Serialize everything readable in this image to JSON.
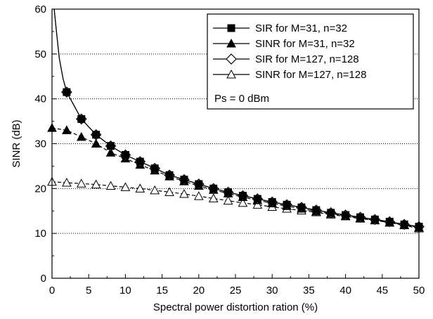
{
  "chart_data": {
    "type": "line",
    "xlabel": "Spectral power distortion ration (%)",
    "ylabel": "SINR (dB)",
    "xlim": [
      0,
      50
    ],
    "ylim": [
      0,
      60
    ],
    "x_ticks": [
      0,
      5,
      10,
      15,
      20,
      25,
      30,
      35,
      40,
      45,
      50
    ],
    "y_ticks": [
      0,
      10,
      20,
      30,
      40,
      50,
      60
    ],
    "grid": "horizontal dotted",
    "legend_position": "top-right",
    "annotation": "Ps = 0 dBm",
    "x": [
      2,
      4,
      6,
      8,
      10,
      12,
      14,
      16,
      18,
      20,
      22,
      24,
      26,
      28,
      30,
      32,
      34,
      36,
      38,
      40,
      42,
      44,
      46,
      48,
      50
    ],
    "series": [
      {
        "name": "SIR for M=31, n=32",
        "marker": "square-filled",
        "color": "#000000",
        "dashed": false,
        "curve_start": [
          0.3,
          60
        ],
        "values": [
          41.5,
          35.5,
          32.0,
          29.5,
          27.5,
          26.0,
          24.5,
          23.0,
          22.0,
          21.0,
          20.0,
          19.2,
          18.4,
          17.7,
          17.0,
          16.4,
          15.8,
          15.2,
          14.6,
          14.1,
          13.6,
          13.1,
          12.6,
          12.0,
          11.5
        ]
      },
      {
        "name": "SINR for M=31, n=32",
        "marker": "triangle-filled",
        "color": "#000000",
        "dashed": true,
        "curve_start": [
          0,
          33.5
        ],
        "values": [
          33.0,
          31.5,
          30.0,
          28.0,
          26.7,
          25.3,
          24.0,
          22.7,
          21.6,
          20.6,
          19.7,
          18.9,
          18.1,
          17.4,
          16.7,
          16.1,
          15.5,
          14.9,
          14.4,
          13.9,
          13.4,
          12.9,
          12.4,
          11.9,
          11.3
        ]
      },
      {
        "name": "SIR for M=127, n=128",
        "marker": "diamond-open",
        "color": "#000000",
        "dashed": false,
        "curve_start": [
          0.3,
          60
        ],
        "values": [
          41.5,
          35.5,
          32.0,
          29.5,
          27.5,
          26.0,
          24.5,
          23.0,
          22.0,
          21.0,
          20.0,
          19.2,
          18.4,
          17.7,
          17.0,
          16.4,
          15.8,
          15.2,
          14.6,
          14.1,
          13.6,
          13.1,
          12.6,
          12.0,
          11.5
        ]
      },
      {
        "name": "SINR for M=127, n=128",
        "marker": "triangle-open",
        "color": "#000000",
        "dashed": true,
        "curve_start": [
          0,
          21.5
        ],
        "values": [
          21.3,
          21.1,
          20.9,
          20.6,
          20.3,
          20.0,
          19.6,
          19.2,
          18.8,
          18.3,
          17.8,
          17.3,
          16.8,
          16.4,
          15.9,
          15.5,
          15.1,
          14.7,
          14.2,
          13.8,
          13.3,
          12.9,
          12.4,
          11.8,
          11.1
        ]
      }
    ]
  }
}
